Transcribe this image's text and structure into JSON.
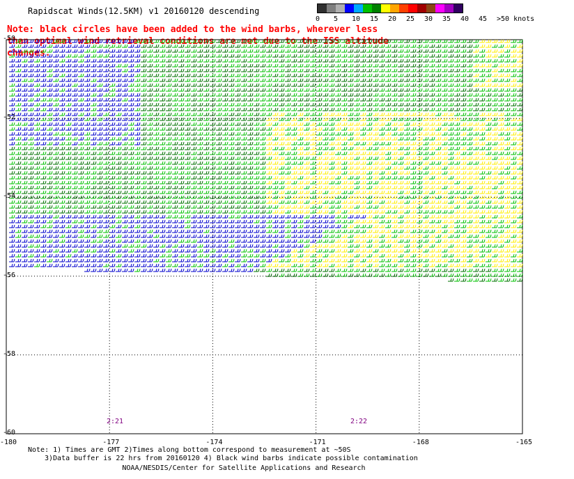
{
  "title": "Rapidscat Winds(12.5KM) v1 20160120 descending",
  "note": "Note: black circles have been added to the wind barbs, wherever less than optimal wind retrieval conditions are met due to the ISS altitude changes.",
  "legend": {
    "labels": [
      "0",
      "5",
      "10",
      "15",
      "20",
      "25",
      "30",
      "35",
      "40",
      "45",
      ">50 knots"
    ],
    "colors": [
      "#303030",
      "#7f7f7f",
      "#b0b0b0",
      "#0000ff",
      "#00aaff",
      "#00c000",
      "#008000",
      "#ffff00",
      "#ffa500",
      "#ff4000",
      "#ff0000",
      "#a00000",
      "#8b4513",
      "#ff00ff",
      "#a000c0",
      "#300060"
    ]
  },
  "map": {
    "lat_labels": [
      "-50",
      "-52",
      "-54",
      "-56",
      "-58",
      "-60"
    ],
    "lon_labels": [
      "-180",
      "-177",
      "-174",
      "-171",
      "-168",
      "-165"
    ],
    "times": [
      "2:21",
      "2:22"
    ]
  },
  "footer": {
    "line1": "Note: 1) Times are GMT 2)Times along bottom correspond to measurement at ~50S",
    "line2": "3)Data buffer is 22 hrs from 20160120 4) Black wind barbs indicate possible contamination",
    "line3": "NOAA/NESDIS/Center for Satellite Applications and Research"
  }
}
